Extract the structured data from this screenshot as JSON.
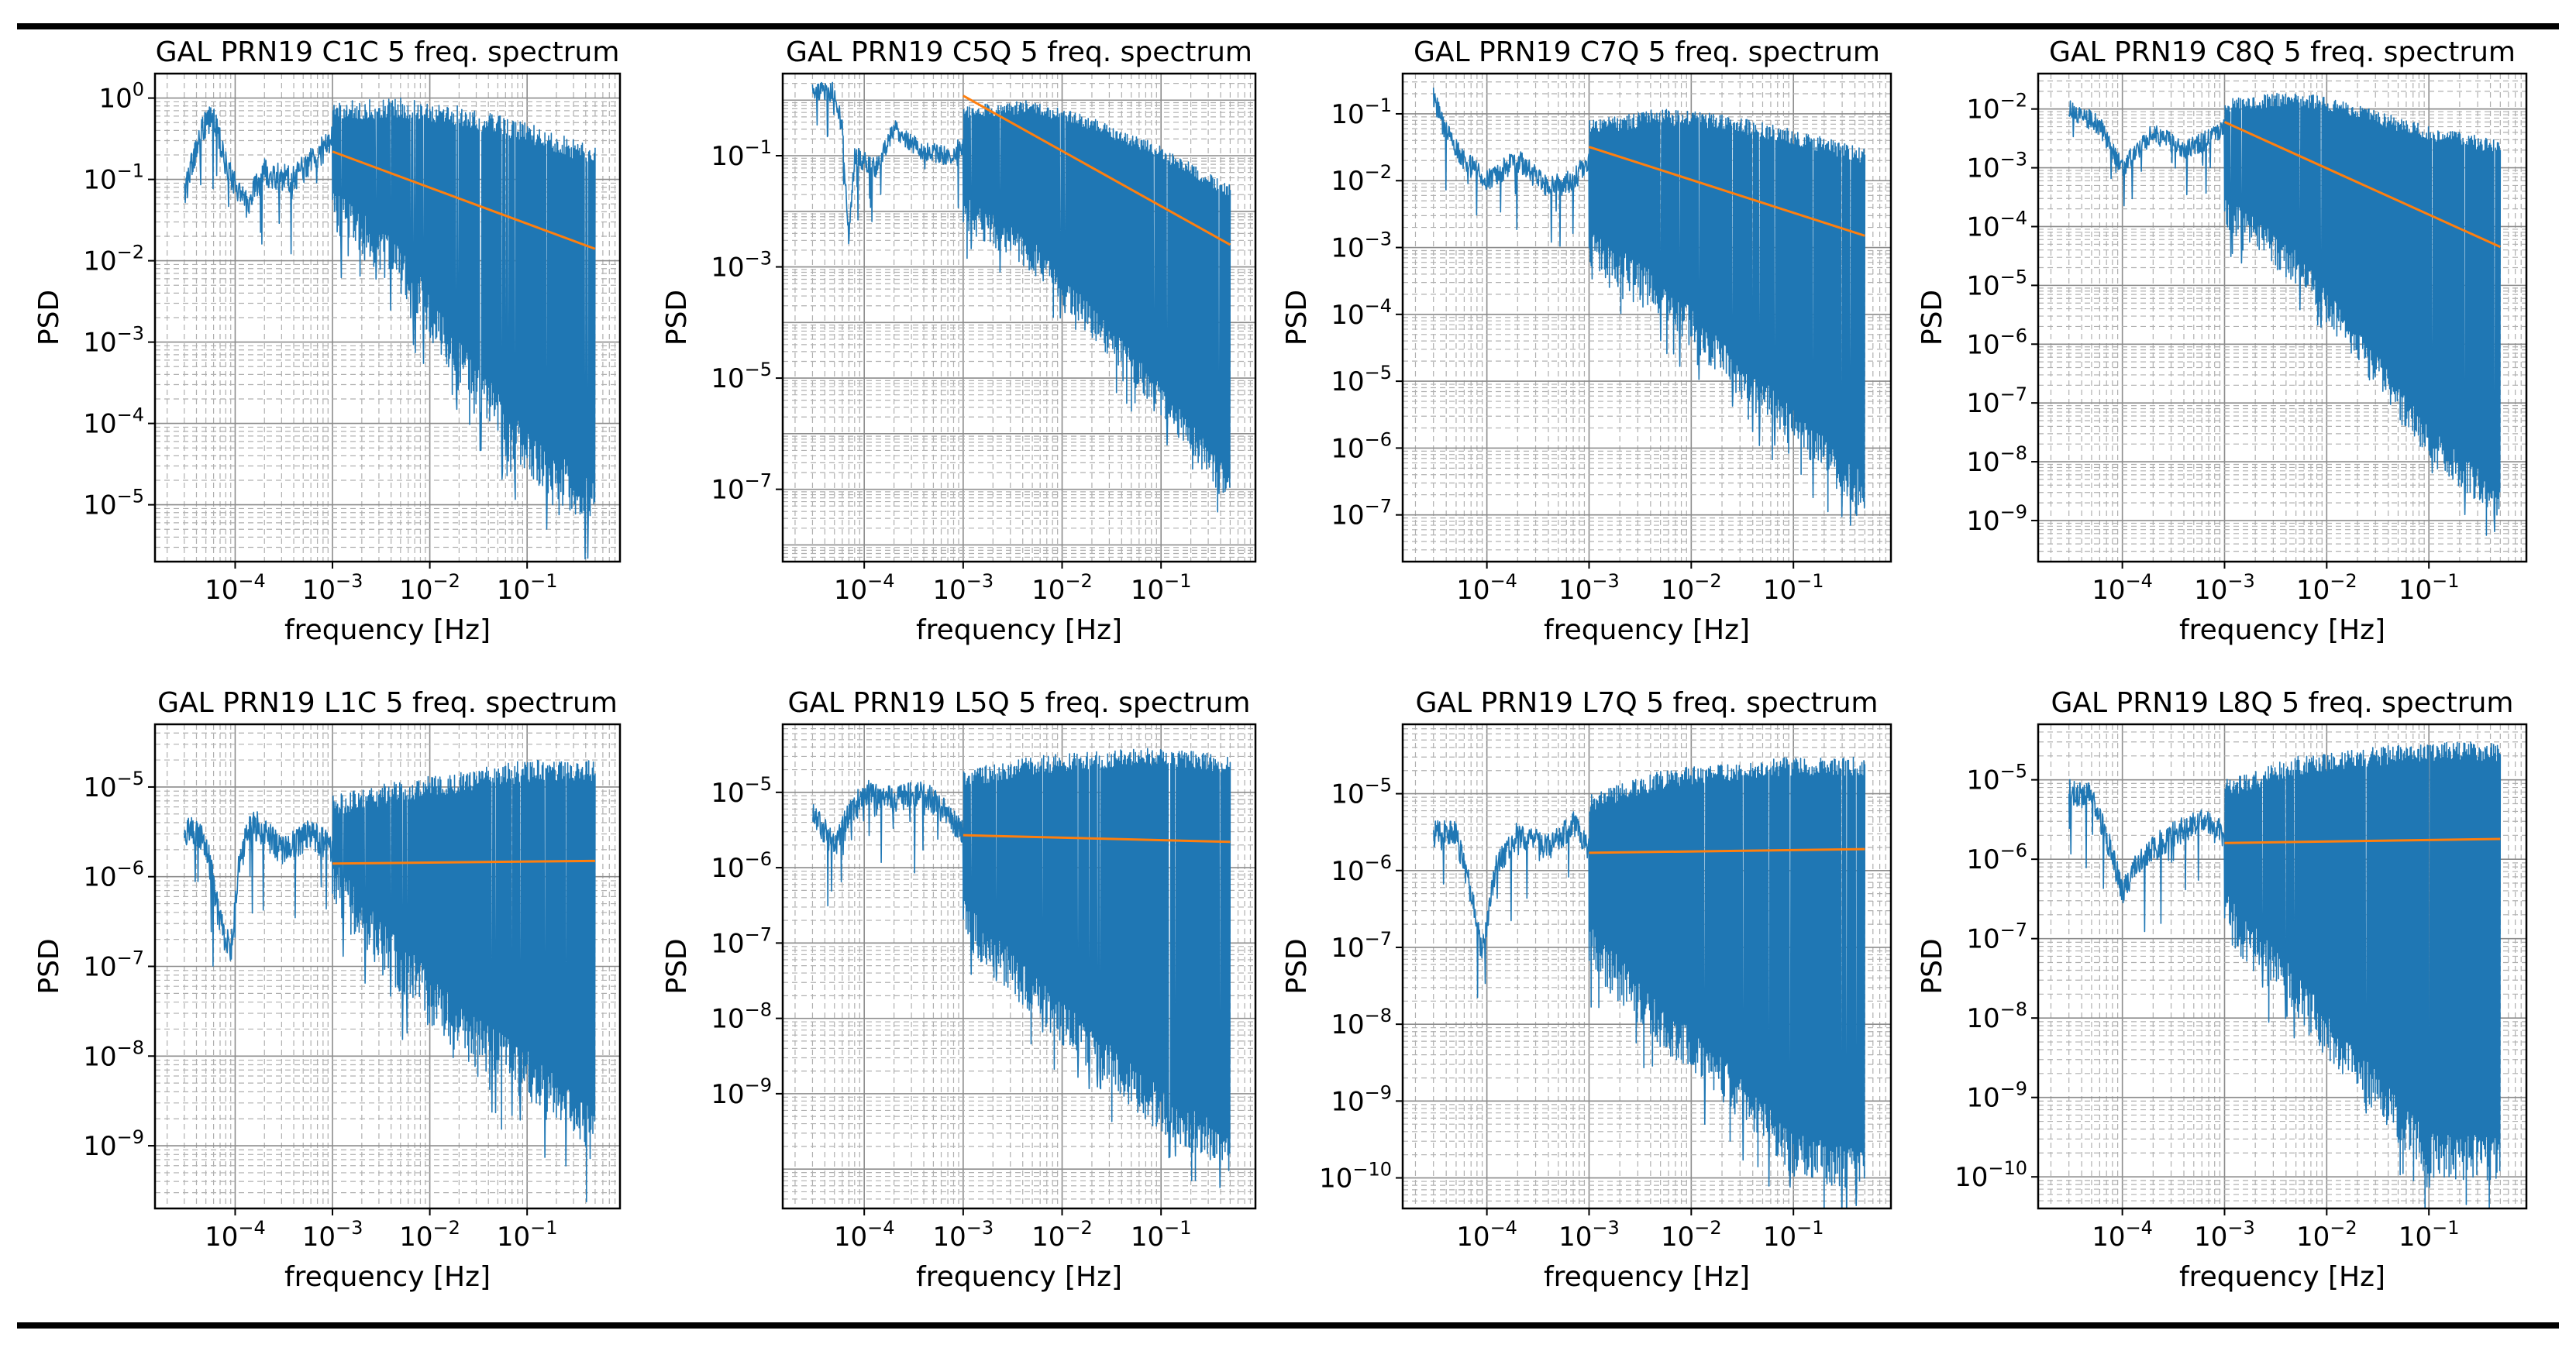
{
  "figure": {
    "colors": {
      "spectrum": "#1f77b4",
      "fit": "#ff7f0e",
      "frame": "#000000",
      "major_grid": "#8c8c8c",
      "minor_grid": "#b0b0b0"
    }
  },
  "chart_data": [
    {
      "type": "line",
      "title": "GAL PRN19 C1C 5 freq. spectrum",
      "xlabel": "frequency [Hz]",
      "ylabel": "PSD",
      "xscale": "log",
      "yscale": "log",
      "xlim": [
        1.5e-05,
        0.9
      ],
      "ylim": [
        2e-06,
        2.0
      ],
      "xticks": [
        -4,
        -3,
        -2,
        -1
      ],
      "yticks": [
        -5,
        -4,
        -3,
        -2,
        -1,
        0
      ],
      "series": [
        {
          "name": "spectrum",
          "x_start": 3e-05,
          "x_end": 0.5,
          "low_freq_profile": [
            [
              3e-05,
              0.07
            ],
            [
              4.5e-05,
              0.4
            ],
            [
              6e-05,
              0.6
            ],
            [
              8e-05,
              0.15
            ],
            [
              0.00013,
              0.05
            ],
            [
              0.0002,
              0.12
            ],
            [
              0.0004,
              0.1
            ],
            [
              0.0007,
              0.2
            ],
            [
              0.001,
              0.3
            ]
          ],
          "envelope_top": [
            [
              0.001,
              0.9
            ],
            [
              0.005,
              1.0
            ],
            [
              0.02,
              0.8
            ],
            [
              0.1,
              0.5
            ],
            [
              0.5,
              0.25
            ]
          ],
          "envelope_bottom": [
            [
              0.001,
              0.02
            ],
            [
              0.005,
              0.004
            ],
            [
              0.02,
              0.0003
            ],
            [
              0.1,
              2e-05
            ],
            [
              0.5,
              5e-06
            ]
          ]
        },
        {
          "name": "power-law fit",
          "points": [
            [
              0.001,
              0.22
            ],
            [
              0.5,
              0.014
            ]
          ]
        }
      ]
    },
    {
      "type": "line",
      "title": "GAL PRN19 C5Q 5 freq. spectrum",
      "xlabel": "frequency [Hz]",
      "ylabel": "PSD",
      "xscale": "log",
      "yscale": "log",
      "xlim": [
        1.5e-05,
        0.9
      ],
      "ylim": [
        5e-09,
        3.0
      ],
      "xticks": [
        -4,
        -3,
        -2,
        -1
      ],
      "yticks": [
        -7,
        -5,
        -3,
        -1
      ],
      "series": [
        {
          "name": "spectrum",
          "x_start": 3e-05,
          "x_end": 0.5,
          "low_freq_profile": [
            [
              3e-05,
              1.4
            ],
            [
              5e-05,
              1.4
            ],
            [
              6e-05,
              0.3
            ],
            [
              7e-05,
              0.003
            ],
            [
              8e-05,
              0.1
            ],
            [
              0.00013,
              0.06
            ],
            [
              0.0002,
              0.3
            ],
            [
              0.0004,
              0.12
            ],
            [
              0.0007,
              0.1
            ],
            [
              0.001,
              0.15
            ]
          ],
          "envelope_top": [
            [
              0.001,
              0.8
            ],
            [
              0.005,
              1.0
            ],
            [
              0.02,
              0.5
            ],
            [
              0.1,
              0.15
            ],
            [
              0.5,
              0.03
            ]
          ],
          "envelope_bottom": [
            [
              0.001,
              0.005
            ],
            [
              0.005,
              0.0008
            ],
            [
              0.02,
              5e-05
            ],
            [
              0.1,
              2e-06
            ],
            [
              0.5,
              5e-08
            ]
          ]
        },
        {
          "name": "power-law fit",
          "points": [
            [
              0.001,
              1.2
            ],
            [
              0.5,
              0.0025
            ]
          ]
        }
      ]
    },
    {
      "type": "line",
      "title": "GAL PRN19 C7Q 5 freq. spectrum",
      "xlabel": "frequency [Hz]",
      "ylabel": "PSD",
      "xscale": "log",
      "yscale": "log",
      "xlim": [
        1.5e-05,
        0.9
      ],
      "ylim": [
        2e-08,
        0.4
      ],
      "xticks": [
        -4,
        -3,
        -2,
        -1
      ],
      "yticks": [
        -7,
        -6,
        -5,
        -4,
        -3,
        -2,
        -1
      ],
      "series": [
        {
          "name": "spectrum",
          "x_start": 3e-05,
          "x_end": 0.5,
          "low_freq_profile": [
            [
              3e-05,
              0.17
            ],
            [
              4e-05,
              0.05
            ],
            [
              6e-05,
              0.02
            ],
            [
              0.0001,
              0.01
            ],
            [
              0.0002,
              0.02
            ],
            [
              0.0004,
              0.008
            ],
            [
              0.0007,
              0.01
            ],
            [
              0.001,
              0.02
            ]
          ],
          "envelope_top": [
            [
              0.001,
              0.08
            ],
            [
              0.005,
              0.12
            ],
            [
              0.02,
              0.1
            ],
            [
              0.1,
              0.06
            ],
            [
              0.5,
              0.03
            ]
          ],
          "envelope_bottom": [
            [
              0.001,
              0.0005
            ],
            [
              0.005,
              0.0001
            ],
            [
              0.02,
              1e-05
            ],
            [
              0.1,
              1e-06
            ],
            [
              0.5,
              1e-07
            ]
          ]
        },
        {
          "name": "power-law fit",
          "points": [
            [
              0.001,
              0.032
            ],
            [
              0.5,
              0.0015
            ]
          ]
        }
      ]
    },
    {
      "type": "line",
      "title": "GAL PRN19 C8Q 5 freq. spectrum",
      "xlabel": "frequency [Hz]",
      "ylabel": "PSD",
      "xscale": "log",
      "yscale": "log",
      "xlim": [
        1.5e-05,
        0.9
      ],
      "ylim": [
        2e-10,
        0.04
      ],
      "xticks": [
        -4,
        -3,
        -2,
        -1
      ],
      "yticks": [
        -9,
        -8,
        -7,
        -6,
        -5,
        -4,
        -3,
        -2
      ],
      "series": [
        {
          "name": "spectrum",
          "x_start": 3e-05,
          "x_end": 0.5,
          "low_freq_profile": [
            [
              3e-05,
              0.01
            ],
            [
              4e-05,
              0.008
            ],
            [
              6e-05,
              0.005
            ],
            [
              0.0001,
              0.001
            ],
            [
              0.0002,
              0.004
            ],
            [
              0.0004,
              0.002
            ],
            [
              0.0007,
              0.003
            ],
            [
              0.001,
              0.005
            ]
          ],
          "envelope_top": [
            [
              0.001,
              0.015
            ],
            [
              0.005,
              0.02
            ],
            [
              0.02,
              0.012
            ],
            [
              0.1,
              0.005
            ],
            [
              0.5,
              0.003
            ]
          ],
          "envelope_bottom": [
            [
              0.001,
              0.0001
            ],
            [
              0.005,
              1e-05
            ],
            [
              0.02,
              5e-07
            ],
            [
              0.1,
              1e-08
            ],
            [
              0.5,
              1e-09
            ]
          ]
        },
        {
          "name": "power-law fit",
          "points": [
            [
              0.001,
              0.006
            ],
            [
              0.5,
              4.5e-05
            ]
          ]
        }
      ]
    },
    {
      "type": "line",
      "title": "GAL PRN19 L1C 5 freq. spectrum",
      "xlabel": "frequency [Hz]",
      "ylabel": "PSD",
      "xscale": "log",
      "yscale": "log",
      "xlim": [
        1.5e-05,
        0.9
      ],
      "ylim": [
        2e-10,
        5e-05
      ],
      "xticks": [
        -4,
        -3,
        -2,
        -1
      ],
      "yticks": [
        -9,
        -8,
        -7,
        -6,
        -5
      ],
      "series": [
        {
          "name": "spectrum",
          "x_start": 3e-05,
          "x_end": 0.5,
          "low_freq_profile": [
            [
              3e-05,
              3.5e-06
            ],
            [
              5e-05,
              2.5e-06
            ],
            [
              7e-05,
              3e-07
            ],
            [
              9e-05,
              1.5e-07
            ],
            [
              0.00011,
              1.5e-06
            ],
            [
              0.00015,
              4e-06
            ],
            [
              0.0003,
              2e-06
            ],
            [
              0.0006,
              3e-06
            ],
            [
              0.001,
              2e-06
            ]
          ],
          "envelope_top": [
            [
              0.001,
              8e-06
            ],
            [
              0.005,
              1.2e-05
            ],
            [
              0.02,
              1.5e-05
            ],
            [
              0.1,
              2e-05
            ],
            [
              0.5,
              2e-05
            ]
          ],
          "envelope_bottom": [
            [
              0.001,
              4e-07
            ],
            [
              0.005,
              5e-08
            ],
            [
              0.02,
              1e-08
            ],
            [
              0.1,
              3e-09
            ],
            [
              0.5,
              6e-10
            ]
          ]
        },
        {
          "name": "power-law fit",
          "points": [
            [
              0.001,
              1.4e-06
            ],
            [
              0.5,
              1.5e-06
            ]
          ]
        }
      ]
    },
    {
      "type": "line",
      "title": "GAL PRN19 L5Q 5 freq. spectrum",
      "xlabel": "frequency [Hz]",
      "ylabel": "PSD",
      "xscale": "log",
      "yscale": "log",
      "xlim": [
        1.5e-05,
        0.9
      ],
      "ylim": [
        3e-11,
        8e-05
      ],
      "xticks": [
        -4,
        -3,
        -2,
        -1
      ],
      "yticks": [
        -9,
        -8,
        -7,
        -6,
        -5
      ],
      "series": [
        {
          "name": "spectrum",
          "x_start": 3e-05,
          "x_end": 0.5,
          "low_freq_profile": [
            [
              3e-05,
              5e-06
            ],
            [
              5e-05,
              2e-06
            ],
            [
              7e-05,
              5e-06
            ],
            [
              0.0001,
              1e-05
            ],
            [
              0.0002,
              8e-06
            ],
            [
              0.0004,
              1e-05
            ],
            [
              0.0007,
              5e-06
            ],
            [
              0.001,
              3e-06
            ]
          ],
          "envelope_top": [
            [
              0.001,
              2e-05
            ],
            [
              0.005,
              3e-05
            ],
            [
              0.02,
              3.5e-05
            ],
            [
              0.1,
              4e-05
            ],
            [
              0.5,
              3e-05
            ]
          ],
          "envelope_bottom": [
            [
              0.001,
              1e-07
            ],
            [
              0.005,
              1e-08
            ],
            [
              0.02,
              2e-09
            ],
            [
              0.1,
              3e-10
            ],
            [
              0.5,
              8e-11
            ]
          ]
        },
        {
          "name": "power-law fit",
          "points": [
            [
              0.001,
              2.7e-06
            ],
            [
              0.5,
              2.2e-06
            ]
          ]
        }
      ]
    },
    {
      "type": "line",
      "title": "GAL PRN19 L7Q 5 freq. spectrum",
      "xlabel": "frequency [Hz]",
      "ylabel": "PSD",
      "xscale": "log",
      "yscale": "log",
      "xlim": [
        1.5e-05,
        0.9
      ],
      "ylim": [
        4e-11,
        8e-05
      ],
      "xticks": [
        -4,
        -3,
        -2,
        -1
      ],
      "yticks": [
        -10,
        -9,
        -8,
        -7,
        -6,
        -5
      ],
      "series": [
        {
          "name": "spectrum",
          "x_start": 3e-05,
          "x_end": 0.5,
          "low_freq_profile": [
            [
              3e-05,
              3e-06
            ],
            [
              5e-05,
              3e-06
            ],
            [
              7e-05,
              5e-07
            ],
            [
              9e-05,
              8e-08
            ],
            [
              0.00012,
              1e-06
            ],
            [
              0.0002,
              3e-06
            ],
            [
              0.0004,
              2e-06
            ],
            [
              0.0007,
              4e-06
            ],
            [
              0.001,
              2e-06
            ]
          ],
          "envelope_top": [
            [
              0.001,
              1e-05
            ],
            [
              0.005,
              2e-05
            ],
            [
              0.02,
              2.5e-05
            ],
            [
              0.1,
              3e-05
            ],
            [
              0.5,
              3e-05
            ]
          ],
          "envelope_bottom": [
            [
              0.001,
              5e-08
            ],
            [
              0.005,
              5e-09
            ],
            [
              0.02,
              1e-09
            ],
            [
              0.1,
              1e-10
            ],
            [
              0.5,
              6e-11
            ]
          ]
        },
        {
          "name": "power-law fit",
          "points": [
            [
              0.001,
              1.7e-06
            ],
            [
              0.5,
              1.9e-06
            ]
          ]
        }
      ]
    },
    {
      "type": "line",
      "title": "GAL PRN19 L8Q 5 freq. spectrum",
      "xlabel": "frequency [Hz]",
      "ylabel": "PSD",
      "xscale": "log",
      "yscale": "log",
      "xlim": [
        1.5e-05,
        0.9
      ],
      "ylim": [
        4e-11,
        5e-05
      ],
      "xticks": [
        -4,
        -3,
        -2,
        -1
      ],
      "yticks": [
        -10,
        -9,
        -8,
        -7,
        -6,
        -5
      ],
      "series": [
        {
          "name": "spectrum",
          "x_start": 3e-05,
          "x_end": 0.5,
          "low_freq_profile": [
            [
              3e-05,
              7e-06
            ],
            [
              5e-05,
              6e-06
            ],
            [
              7e-05,
              2e-06
            ],
            [
              0.0001,
              4e-07
            ],
            [
              0.00015,
              1e-06
            ],
            [
              0.0003,
              2e-06
            ],
            [
              0.0006,
              3e-06
            ],
            [
              0.001,
              2e-06
            ]
          ],
          "envelope_top": [
            [
              0.001,
              1e-05
            ],
            [
              0.005,
              2e-05
            ],
            [
              0.02,
              2.5e-05
            ],
            [
              0.1,
              3e-05
            ],
            [
              0.5,
              3e-05
            ]
          ],
          "envelope_bottom": [
            [
              0.001,
              1e-07
            ],
            [
              0.005,
              1e-08
            ],
            [
              0.02,
              1e-09
            ],
            [
              0.1,
              1e-10
            ],
            [
              0.5,
              8e-11
            ]
          ]
        },
        {
          "name": "power-law fit",
          "points": [
            [
              0.001,
              1.6e-06
            ],
            [
              0.5,
              1.8e-06
            ]
          ]
        }
      ]
    }
  ]
}
